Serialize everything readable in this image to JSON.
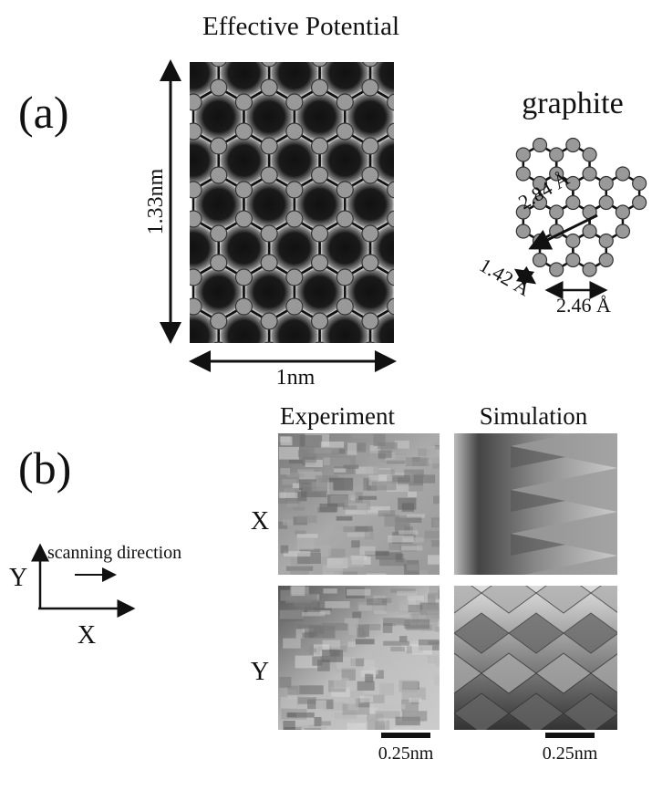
{
  "panel_a": {
    "label": "(a)",
    "title": "Effective Potential",
    "height_label": "1.33nm",
    "width_label": "1nm",
    "graphite": {
      "title": "graphite",
      "d1": "2.84 Å",
      "d2": "1.42 Å",
      "d3": "2.46 Å"
    }
  },
  "panel_b": {
    "label": "(b)",
    "columns": [
      "Experiment",
      "Simulation"
    ],
    "rows": [
      "X",
      "Y"
    ],
    "axes": {
      "y": "Y",
      "x": "X",
      "caption": "scanning direction"
    },
    "scale_bars": [
      "0.25nm",
      "0.25nm"
    ]
  }
}
